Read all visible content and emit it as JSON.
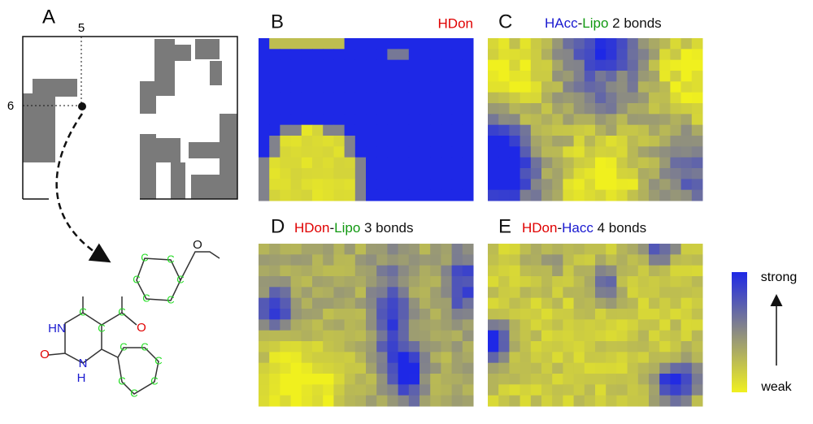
{
  "panel_a": {
    "letter": "A",
    "x_marker": "5",
    "y_marker": "6"
  },
  "molecule": {
    "carbon": "C",
    "hn": "HN",
    "n": "N",
    "h": "H",
    "oxygen": "O"
  },
  "panel_b": {
    "letter": "B",
    "title_1": "HDon"
  },
  "panel_c": {
    "letter": "C",
    "title_1": "HAcc",
    "dash": "-",
    "title_2": "Lipo",
    "title_3": " 2 bonds"
  },
  "panel_d": {
    "letter": "D",
    "title_1": "HDon",
    "dash": "-",
    "title_2": "Lipo",
    "title_3": " 3 bonds"
  },
  "panel_e": {
    "letter": "E",
    "title_1": "HDon",
    "dash": "-",
    "title_2": "Hacc",
    "title_3": " 4 bonds"
  },
  "legend": {
    "high": "strong",
    "low": "weak"
  }
}
